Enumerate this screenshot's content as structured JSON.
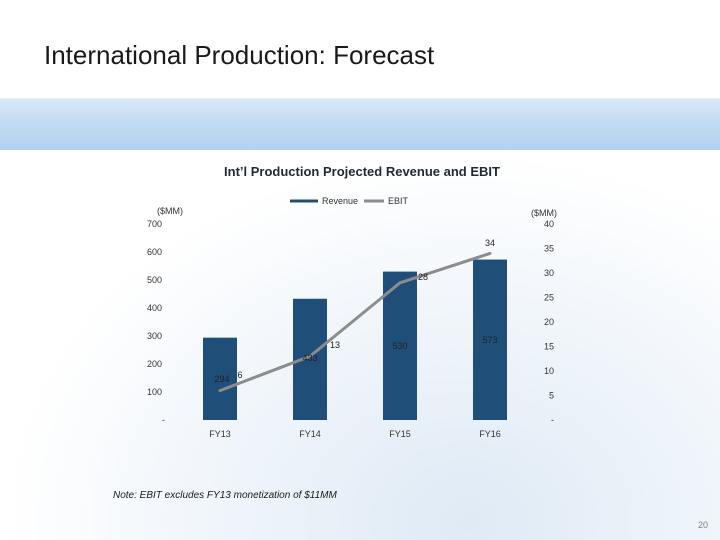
{
  "slide": {
    "title": "International Production: Forecast",
    "note": "Note: EBIT excludes FY13 monetization of $11MM",
    "page_number": "20"
  },
  "colors": {
    "bar": "#1f4e79",
    "line": "#8c8c8c",
    "banner": "#c3dcf2"
  },
  "chart_data": {
    "type": "bar",
    "title": "Int’l Production Projected Revenue and EBIT",
    "categories": [
      "FY13",
      "FY14",
      "FY15",
      "FY16"
    ],
    "series": [
      {
        "name": "Revenue",
        "type": "bar",
        "axis": "left",
        "values": [
          294,
          433,
          530,
          573
        ]
      },
      {
        "name": "EBIT",
        "type": "line",
        "axis": "right",
        "values": [
          6,
          13,
          28,
          34
        ]
      }
    ],
    "left_axis": {
      "unit": "($MM)",
      "ylim": [
        0,
        700
      ],
      "ticks": [
        "-",
        "100",
        "200",
        "300",
        "400",
        "500",
        "600",
        "700"
      ]
    },
    "right_axis": {
      "unit": "($MM)",
      "ylim": [
        0,
        40
      ],
      "ticks": [
        "-",
        "5",
        "10",
        "15",
        "20",
        "25",
        "30",
        "35",
        "40"
      ]
    },
    "legend_position": "top-center",
    "grid": false
  }
}
